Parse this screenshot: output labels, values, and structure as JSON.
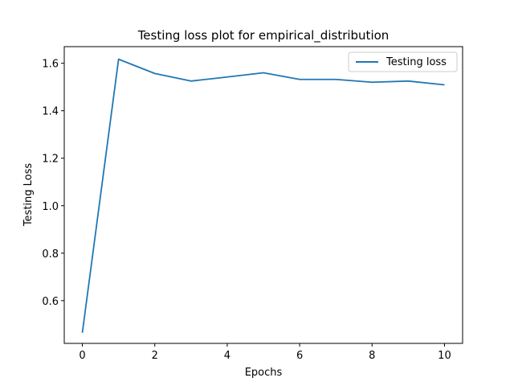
{
  "chart_data": {
    "type": "line",
    "title": "Testing loss plot for empirical_distribution",
    "xlabel": "Epochs",
    "ylabel": "Testing Loss",
    "xlim": [
      -0.5,
      10.5
    ],
    "ylim": [
      0.42,
      1.67
    ],
    "xticks": [
      0,
      2,
      4,
      6,
      8,
      10
    ],
    "xtick_labels": [
      "0",
      "2",
      "4",
      "6",
      "8",
      "10"
    ],
    "yticks": [
      0.6,
      0.8,
      1.0,
      1.2,
      1.4,
      1.6
    ],
    "ytick_labels": [
      "0.6",
      "0.8",
      "1.0",
      "1.2",
      "1.4",
      "1.6"
    ],
    "grid": false,
    "legend_position": "top-right",
    "series": [
      {
        "name": "Testing loss",
        "color": "#1f77b4",
        "x": [
          0,
          1,
          2,
          3,
          4,
          5,
          6,
          7,
          8,
          9,
          10
        ],
        "y": [
          0.465,
          1.617,
          1.557,
          1.525,
          1.542,
          1.56,
          1.532,
          1.532,
          1.52,
          1.525,
          1.509
        ]
      }
    ]
  }
}
